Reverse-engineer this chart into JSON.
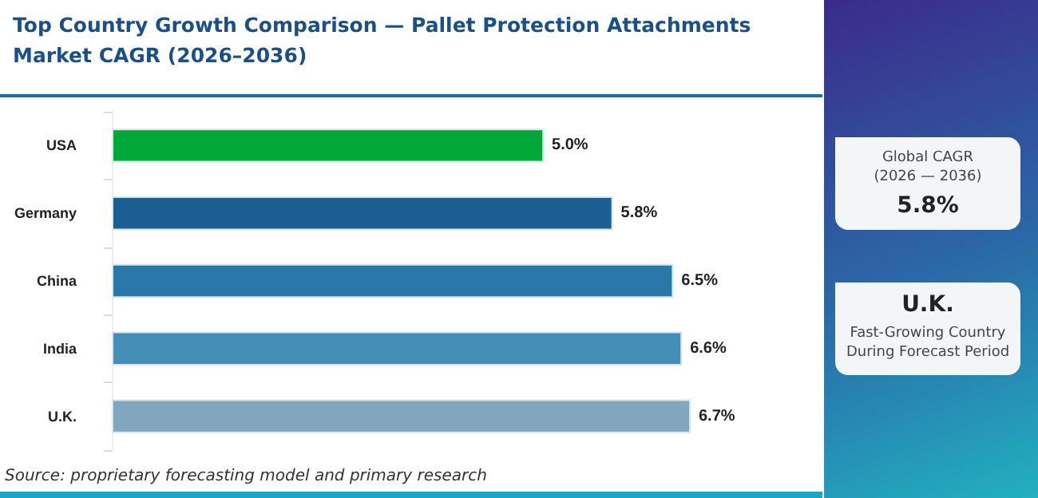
{
  "chart_data": {
    "type": "bar",
    "orientation": "horizontal",
    "title": "Top Country Growth Comparison — Pallet Protection Attachments Market CAGR (2026–2036)",
    "categories": [
      "USA",
      "Germany",
      "China",
      "India",
      "U.K."
    ],
    "values": [
      5.0,
      5.8,
      6.5,
      6.6,
      6.7
    ],
    "colors": [
      "#00a838",
      "#1a5e92",
      "#2a78aa",
      "#448fb8",
      "#80a7bd"
    ],
    "value_labels": [
      "5.0%",
      "5.8%",
      "6.5%",
      "6.6%",
      "6.7%"
    ],
    "tick_labels": "y",
    "grid": false,
    "annotations": [
      "Source: proprietary forecasting model and primary research",
      "Global CAGR",
      "(2026 — 2036)",
      "5.8%",
      "U.K.",
      "Fast-Growing Country During Forecast Period"
    ]
  }
}
